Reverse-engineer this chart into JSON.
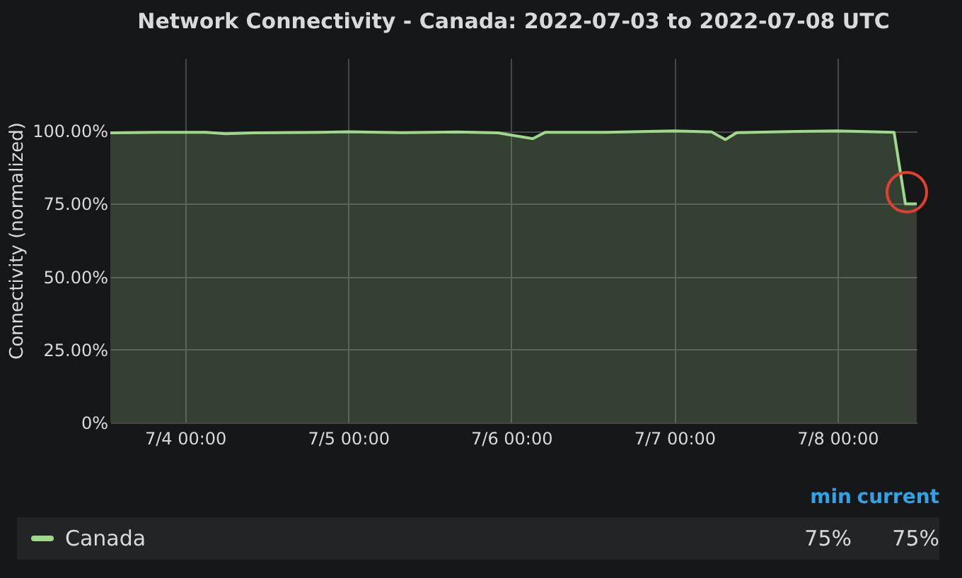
{
  "chart_data": {
    "type": "area",
    "title": "Network Connectivity - Canada: 2022-07-03 to 2022-07-08 UTC",
    "ylabel": "Connectivity (normalized)",
    "x": [
      "2022-07-03T13:00",
      "2022-07-03T20:00",
      "2022-07-04T03:00",
      "2022-07-04T06:00",
      "2022-07-04T10:00",
      "2022-07-04T20:00",
      "2022-07-05T00:00",
      "2022-07-05T08:00",
      "2022-07-05T16:00",
      "2022-07-05T22:00",
      "2022-07-06T03:10",
      "2022-07-06T05:00",
      "2022-07-06T14:00",
      "2022-07-07T00:00",
      "2022-07-07T05:30",
      "2022-07-07T07:30",
      "2022-07-07T09:10",
      "2022-07-07T18:00",
      "2022-07-08T00:00",
      "2022-07-08T08:20",
      "2022-07-08T10:00",
      "2022-07-08T11:40"
    ],
    "series": [
      {
        "name": "Canada",
        "color": "#9ed98b",
        "values": [
          99.3,
          99.5,
          99.5,
          99.0,
          99.3,
          99.5,
          99.7,
          99.4,
          99.6,
          99.3,
          97.3,
          99.5,
          99.5,
          100,
          99.6,
          97.0,
          99.4,
          99.8,
          100,
          99.5,
          75,
          75
        ]
      }
    ],
    "ylim": [
      0,
      125
    ],
    "yticks": [
      {
        "value": 0,
        "label": "0%"
      },
      {
        "value": 25,
        "label": "25.00%"
      },
      {
        "value": 50,
        "label": "50.00%"
      },
      {
        "value": 75,
        "label": "75.00%"
      },
      {
        "value": 100,
        "label": "100.00%"
      }
    ],
    "xlim": [
      "2022-07-03T13:00",
      "2022-07-08T11:40"
    ],
    "xticks": [
      {
        "value": "2022-07-04T00:00",
        "label": "7/4 00:00"
      },
      {
        "value": "2022-07-05T00:00",
        "label": "7/5 00:00"
      },
      {
        "value": "2022-07-06T00:00",
        "label": "7/6 00:00"
      },
      {
        "value": "2022-07-07T00:00",
        "label": "7/7 00:00"
      },
      {
        "value": "2022-07-08T00:00",
        "label": "7/8 00:00"
      }
    ],
    "grid": true,
    "legend": "bottom",
    "annotations": [
      "min",
      "current",
      "75%",
      "75%"
    ]
  }
}
